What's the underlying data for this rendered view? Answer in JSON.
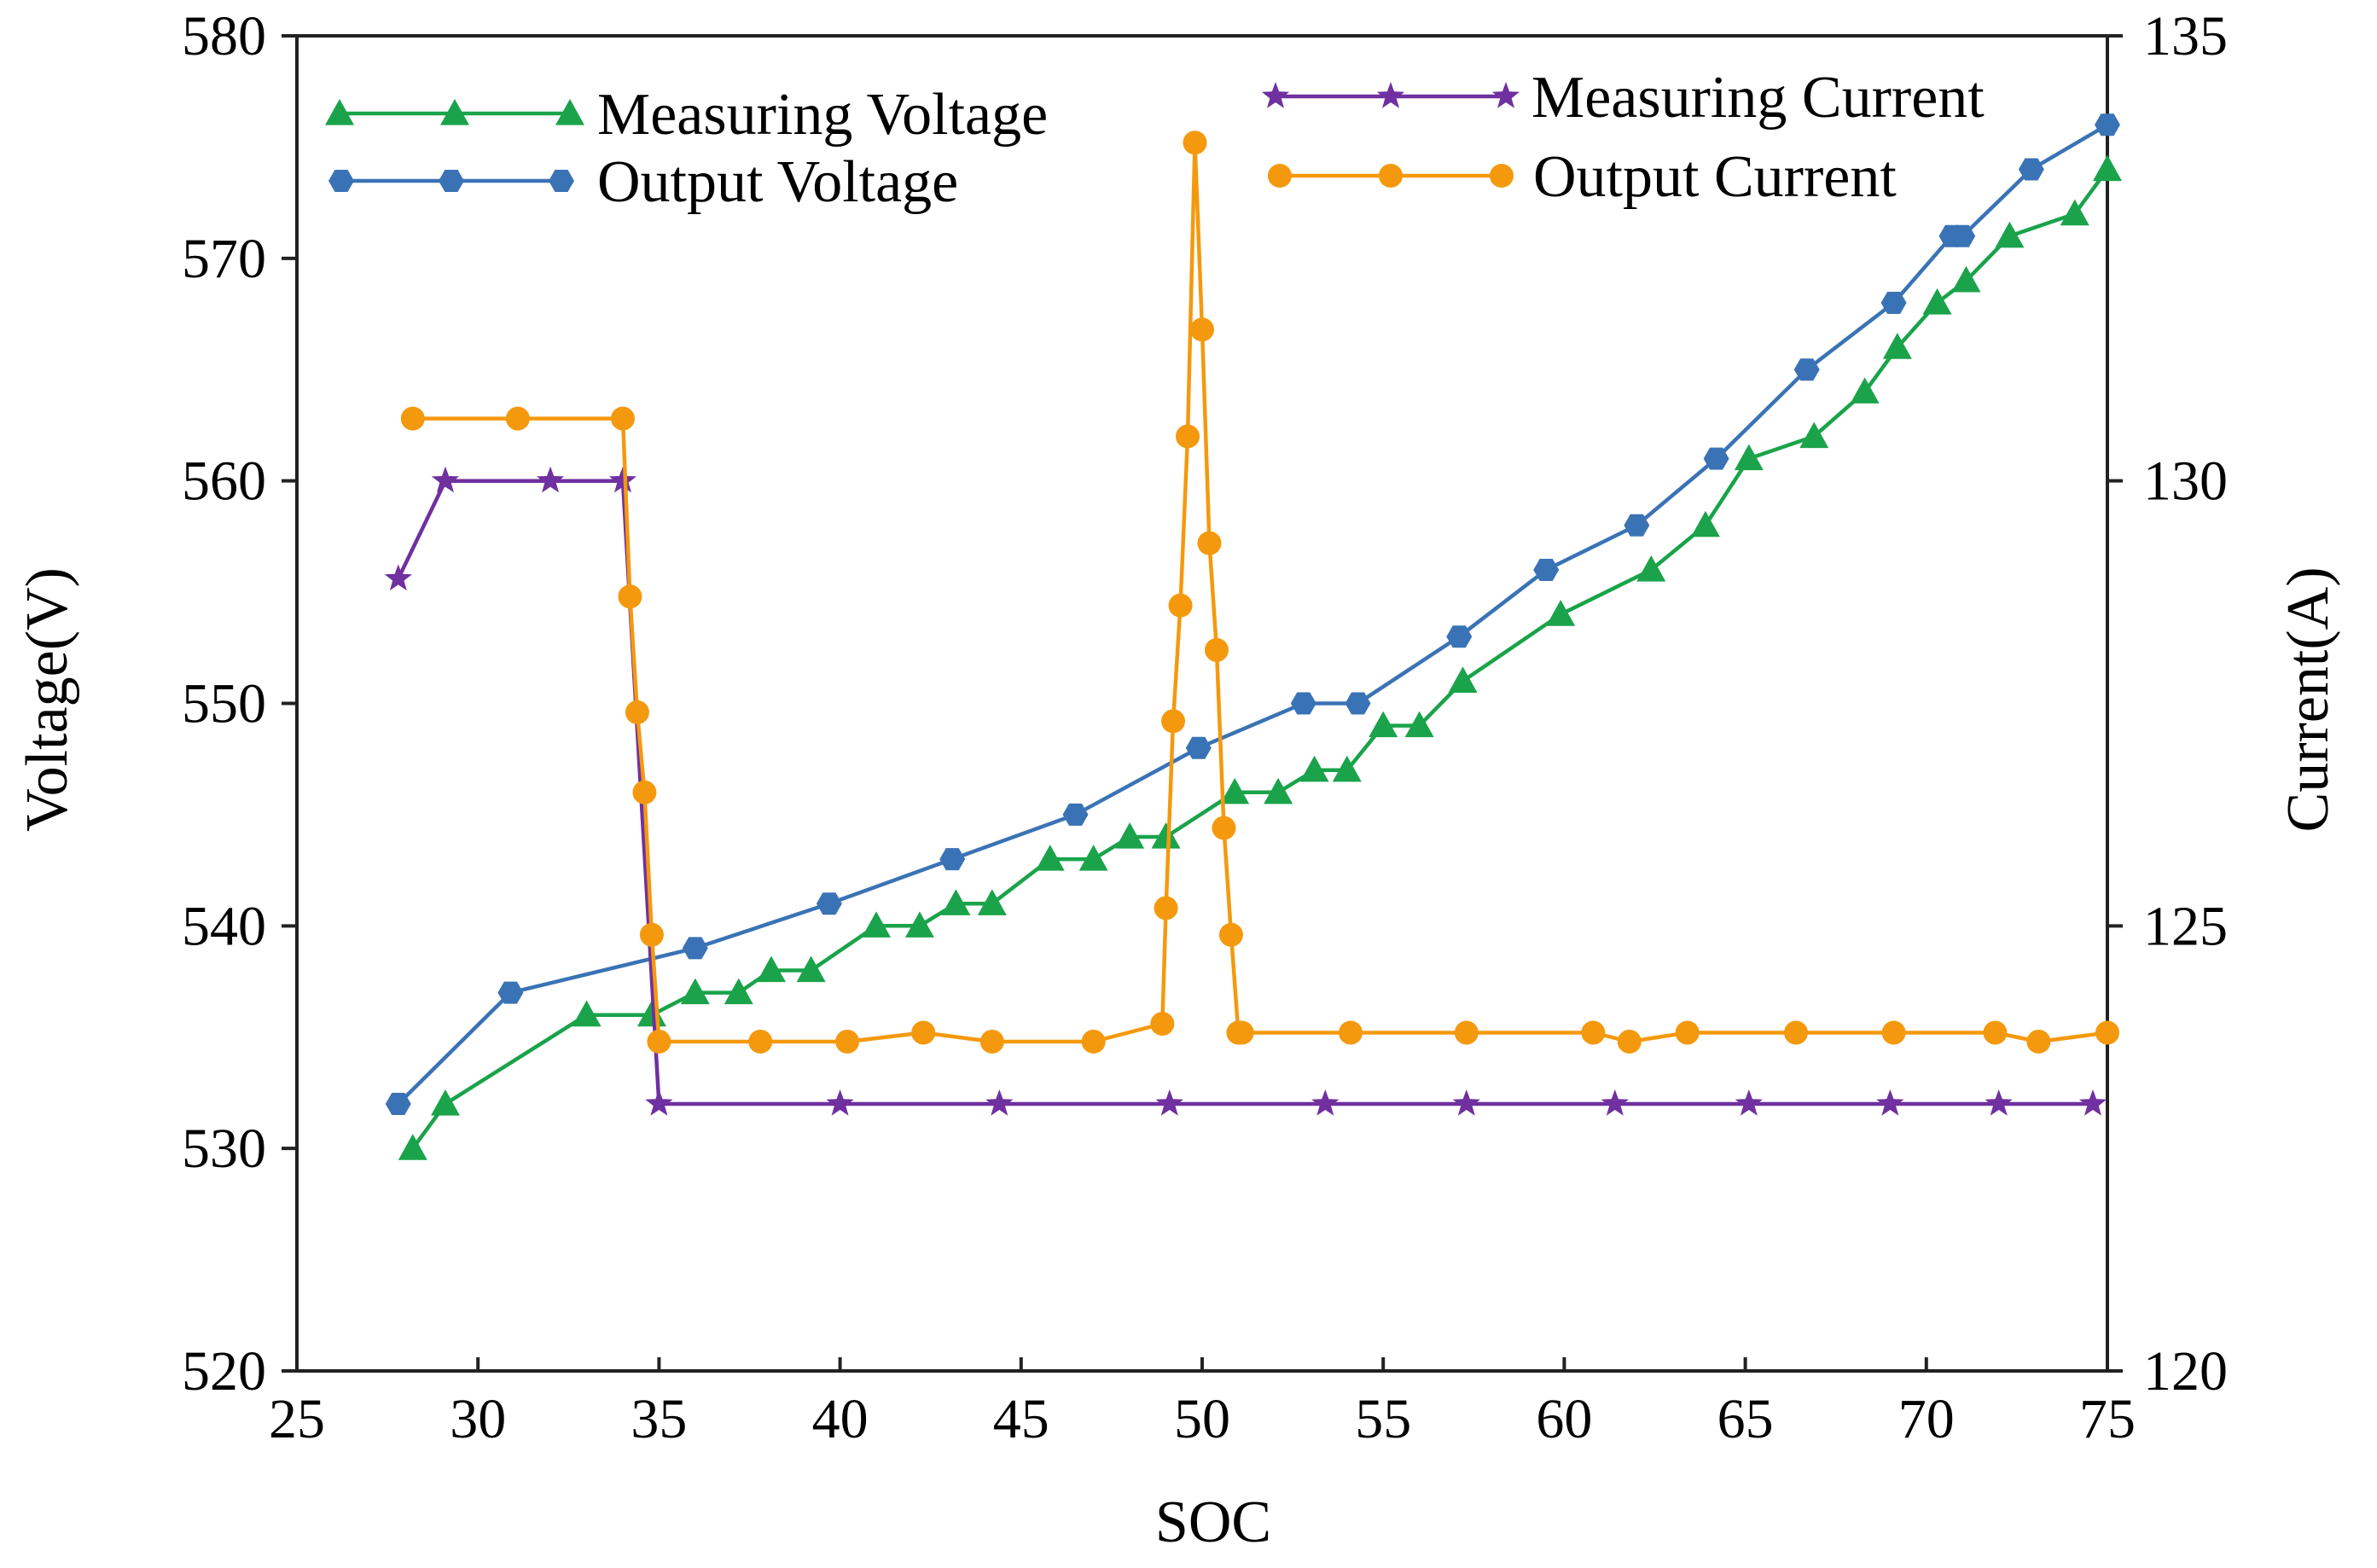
{
  "chart_data": {
    "type": "line",
    "xlabel": "SOC",
    "ylabel_left": "Voltage(V)",
    "ylabel_right": "Current(A)",
    "xlim": [
      25,
      75
    ],
    "ylim_left": [
      520,
      580
    ],
    "ylim_right": [
      120,
      135
    ],
    "x_ticks": [
      25,
      30,
      35,
      40,
      45,
      50,
      55,
      60,
      65,
      70,
      75
    ],
    "y_ticks_left": [
      520,
      530,
      540,
      550,
      560,
      570,
      580
    ],
    "y_ticks_right": [
      120,
      125,
      130,
      135
    ],
    "grid": false,
    "series": [
      {
        "name": "Measuring Voltage",
        "axis": "left",
        "color": "#1aa34a",
        "marker": "triangle",
        "x": [
          28.2,
          29.1,
          33.0,
          34.8,
          36.0,
          37.2,
          38.1,
          39.2,
          41.0,
          42.2,
          43.2,
          44.2,
          45.8,
          47.0,
          48.0,
          49.0,
          50.9,
          52.1,
          53.1,
          54.0,
          55.0,
          56.0,
          57.2,
          59.9,
          62.4,
          63.9,
          65.1,
          66.9,
          68.3,
          69.2,
          70.3,
          71.1,
          72.3,
          74.1,
          75.0
        ],
        "values": [
          530,
          532,
          536,
          536,
          537,
          537,
          538,
          538,
          540,
          540,
          541,
          541,
          543,
          543,
          544,
          544,
          546,
          546,
          547,
          547,
          549,
          549,
          551,
          554,
          556,
          558,
          561,
          562,
          564,
          566,
          568,
          569,
          571,
          572,
          574
        ]
      },
      {
        "name": "Output Voltage",
        "axis": "left",
        "color": "#3a73b5",
        "marker": "hexagon",
        "x": [
          27.8,
          30.9,
          36.0,
          39.7,
          43.1,
          46.5,
          49.9,
          52.8,
          54.3,
          57.1,
          59.5,
          62.0,
          64.2,
          66.7,
          69.1,
          70.7,
          71.0,
          72.9,
          75.0
        ],
        "values": [
          532,
          537,
          539,
          541,
          543,
          545,
          548,
          550,
          550,
          553,
          556,
          558,
          561,
          565,
          568,
          571,
          571,
          574,
          576
        ]
      },
      {
        "name": "Measuring Current",
        "axis": "right",
        "color": "#7030a0",
        "marker": "star",
        "x": [
          27.8,
          29.1,
          32.0,
          34.0,
          35.0,
          40.0,
          44.4,
          49.1,
          53.4,
          57.3,
          61.4,
          65.1,
          69.0,
          72.0,
          74.6
        ],
        "values": [
          128.9,
          130.0,
          130.0,
          130.0,
          123.0,
          123.0,
          123.0,
          123.0,
          123.0,
          123.0,
          123.0,
          123.0,
          123.0,
          123.0,
          123.0
        ]
      },
      {
        "name": "Output Current",
        "axis": "right",
        "color": "#f4990e",
        "marker": "circle",
        "x": [
          28.2,
          31.1,
          34.0,
          34.2,
          34.4,
          34.6,
          34.8,
          35.0,
          37.8,
          40.2,
          42.3,
          44.2,
          47.0,
          48.9,
          49.0,
          49.2,
          49.4,
          49.6,
          49.8,
          50.0,
          50.2,
          50.4,
          50.6,
          50.8,
          51.0,
          51.1,
          54.1,
          57.3,
          60.8,
          61.8,
          63.4,
          66.4,
          69.1,
          71.9,
          73.1,
          75.0
        ],
        "values": [
          130.7,
          130.7,
          130.7,
          128.7,
          127.4,
          126.5,
          124.9,
          123.7,
          123.7,
          123.7,
          123.8,
          123.7,
          123.7,
          123.9,
          125.2,
          127.3,
          128.6,
          130.5,
          133.8,
          131.7,
          129.3,
          128.1,
          126.1,
          124.9,
          123.8,
          123.8,
          123.8,
          123.8,
          123.8,
          123.7,
          123.8,
          123.8,
          123.8,
          123.8,
          123.7,
          123.8
        ]
      }
    ],
    "legend": [
      {
        "label": "Measuring Voltage",
        "series": "Measuring Voltage"
      },
      {
        "label": "Output Voltage",
        "series": "Output Voltage"
      },
      {
        "label": "Measuring Current",
        "series": "Measuring Current"
      },
      {
        "label": "Output Current",
        "series": "Output Current"
      }
    ]
  }
}
